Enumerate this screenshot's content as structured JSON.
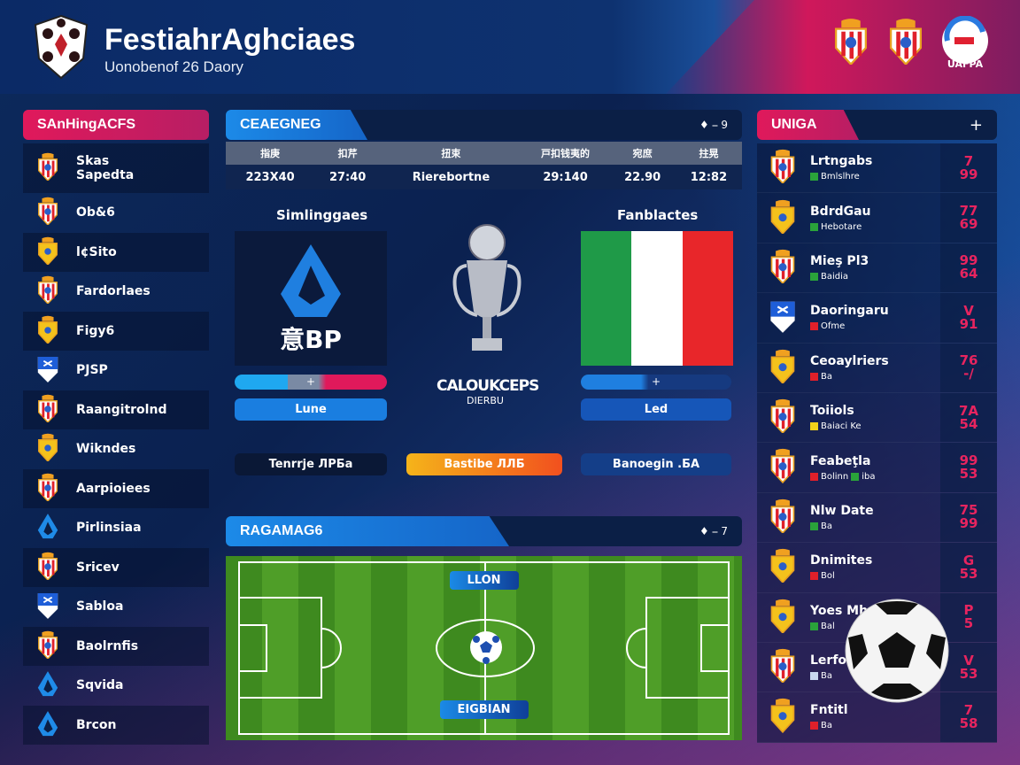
{
  "header": {
    "title": "FestiahrAghciaes",
    "subtitle": "Uonobenof 26 Daory",
    "badge_text": "UAFPA"
  },
  "left": {
    "title": "SAnHingACFS",
    "items": [
      {
        "label": "Skas\nSapedta",
        "crest": "redwhite"
      },
      {
        "label": "Ob&6",
        "crest": "redwhite"
      },
      {
        "label": "l¢Sito",
        "crest": "yellow"
      },
      {
        "label": "Fardorlaes",
        "crest": "redwhite"
      },
      {
        "label": "Figy6",
        "crest": "yellow"
      },
      {
        "label": "PJSP",
        "crest": "bluewhite"
      },
      {
        "label": "Raangitrolnd",
        "crest": "redwhite"
      },
      {
        "label": "Wikndes",
        "crest": "yellow"
      },
      {
        "label": "Aarpioiees",
        "crest": "redwhite"
      },
      {
        "label": "Pirlinsiaa",
        "crest": "seriea"
      },
      {
        "label": "Sricev",
        "crest": "redwhite"
      },
      {
        "label": "Sabloa",
        "crest": "bluewhite"
      },
      {
        "label": "Baolrnfis",
        "crest": "redwhite"
      },
      {
        "label": "Sqvida",
        "crest": "seriea"
      },
      {
        "label": "Brcon",
        "crest": "seriea"
      }
    ]
  },
  "center": {
    "title": "CEAEGNEG",
    "controls": "♦ ⎯ 9",
    "table": {
      "headers": [
        "指庚",
        "扣芹",
        "扭束",
        "戸扣钱夷的",
        "宛庶",
        "拄晃"
      ],
      "values": [
        "223X40",
        "27:40",
        "Rierebortne",
        "29:140",
        "22.90",
        "12:82"
      ]
    },
    "home": {
      "label": "Simlinggaes",
      "logo_text": "意BP",
      "bar": "+",
      "button": "Lune",
      "bottom": "Tenrrje ЛPБа"
    },
    "away": {
      "label": "Fanblactes",
      "bar": "+",
      "button": "Led",
      "bottom": "Banoegin .БA"
    },
    "trophy": {
      "title": "CALOUKCEPS",
      "sub": "DIERBU"
    },
    "highlight": "Bastibe ЛЛБ"
  },
  "pitch": {
    "title": "RAGAMAG6",
    "controls": "♦ ⎯ 7",
    "top_label": "LLON",
    "bottom_label": "EIGBIAN"
  },
  "right": {
    "title": "UNIGA",
    "add": "+",
    "items": [
      {
        "name": "Lrtngabs",
        "status": "Bmlslhre",
        "color": "#2aa33a",
        "score": "7\n99",
        "crest": "redwhite"
      },
      {
        "name": "BdrdGau",
        "status": "Hebotare",
        "color": "#2aa33a",
        "score": "77\n69",
        "crest": "yellow"
      },
      {
        "name": "Mieş Pl3",
        "status": "Baidia",
        "color": "#2aa33a",
        "score": "99\n64",
        "crest": "redwhite"
      },
      {
        "name": "Daoringaru",
        "status": "Ofme",
        "color": "#e0202a",
        "score": "V\n91",
        "crest": "bluewhite"
      },
      {
        "name": "Ceoaylriers",
        "status": "Ba",
        "color": "#e0202a",
        "score": "76\n-/",
        "crest": "yellow"
      },
      {
        "name": "Toiiols",
        "status": "Baiaci Ke",
        "color": "#f2d21a",
        "score": "7A\n54",
        "crest": "redwhite"
      },
      {
        "name": "Feabeţla",
        "status": "Bolinn",
        "status2": "iba",
        "color": "#e0202a",
        "color2": "#2aa33a",
        "score": "99\n53",
        "crest": "redwhite"
      },
      {
        "name": "Nlw Date",
        "status": "Ba",
        "color": "#2aa33a",
        "score": "75\n99",
        "crest": "redwhite"
      },
      {
        "name": "Dnimites",
        "status": "Bol",
        "color": "#e0202a",
        "score": "G\n53",
        "crest": "yellow"
      },
      {
        "name": "Yoes Mhe",
        "status": "Bal",
        "color": "#2aa33a",
        "score": "P\n5",
        "crest": "yellow"
      },
      {
        "name": "Lerfo",
        "status": "Ba",
        "color": "#c8d8f0",
        "score": "V\n53",
        "crest": "redwhite"
      },
      {
        "name": "Fntitl",
        "status": "Ba",
        "color": "#e0202a",
        "score": "7\n58",
        "crest": "yellow"
      }
    ]
  },
  "colors": {
    "accent_pink": "#e0195b",
    "accent_blue": "#1c8ae8",
    "orange": "#f5a623"
  }
}
